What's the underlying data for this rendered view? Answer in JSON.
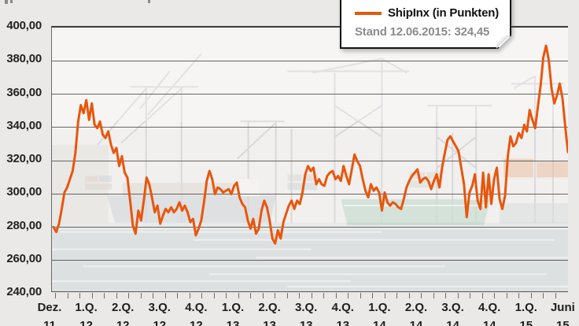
{
  "page": {
    "background": "#eae9e7"
  },
  "legend": {
    "series_label": "ShipInx (in Punkten)",
    "stand_label": "Stand 12.06.2015: 324,45",
    "line_color": "#e8560d"
  },
  "chart_data": {
    "type": "line",
    "title": "ShipInx (in Punkten)",
    "subtitle": "Stand 12.06.2015: 324,45",
    "ylim": [
      240,
      400
    ],
    "grid": true,
    "legend_position": "top-right",
    "y_ticks": [
      "400,00",
      "380,00",
      "360,00",
      "340,00",
      "320,00",
      "300,00",
      "280,00",
      "260,00",
      "240,00"
    ],
    "y_tick_values": [
      400,
      380,
      360,
      340,
      320,
      300,
      280,
      260,
      240
    ],
    "x_labels": [
      "Dez.",
      "1.Q.",
      "2.Q.",
      "3.Q.",
      "4.Q.",
      "1.Q.",
      "2.Q.",
      "3.Q.",
      "4.Q.",
      "1.Q.",
      "2.Q.",
      "3.Q.",
      "4.Q.",
      "1.Q.",
      "Juni"
    ],
    "x_year_labels": [
      "11",
      "12",
      "12",
      "12",
      "12",
      "13",
      "13",
      "13",
      "13",
      "14",
      "14",
      "14",
      "14",
      "15",
      "15"
    ],
    "x_range_note": "Dez. 2011 bis Juni 2015, Monatsticks",
    "last_value": 324.45,
    "series": [
      {
        "name": "ShipInx",
        "color": "#e8560d",
        "values": [
          279,
          276,
          281,
          290,
          300,
          303,
          308,
          313,
          324,
          343,
          353,
          348,
          356,
          344,
          354,
          341,
          339,
          343,
          335,
          333,
          337,
          329,
          324,
          327,
          316,
          322,
          312,
          309,
          295,
          280,
          275,
          289,
          283,
          295,
          309,
          305,
          297,
          288,
          292,
          281,
          286,
          290,
          288,
          291,
          288,
          290,
          294,
          289,
          292,
          288,
          282,
          284,
          274,
          278,
          283,
          294,
          307,
          313,
          308,
          299,
          303,
          302,
          300,
          301,
          302,
          299,
          304,
          306,
          297,
          293,
          291,
          283,
          278,
          284,
          275,
          278,
          289,
          295,
          291,
          283,
          272,
          269,
          277,
          272,
          282,
          287,
          292,
          295,
          290,
          295,
          293,
          300,
          311,
          316,
          313,
          315,
          305,
          308,
          305,
          304,
          310,
          312,
          313,
          308,
          310,
          307,
          316,
          310,
          305,
          314,
          323,
          319,
          316,
          308,
          301,
          297,
          305,
          301,
          303,
          300,
          289,
          300,
          294,
          292,
          294,
          293,
          291,
          290,
          296,
          303,
          307,
          310,
          312,
          314,
          306,
          308,
          309,
          307,
          302,
          307,
          311,
          303,
          315,
          324,
          332,
          334,
          331,
          328,
          325,
          315,
          305,
          285,
          300,
          304,
          311,
          295,
          290,
          312,
          291,
          311,
          293,
          308,
          315,
          296,
          290,
          298,
          322,
          334,
          328,
          330,
          336,
          333,
          341,
          337,
          350,
          344,
          339,
          352,
          365,
          382,
          389,
          380,
          363,
          354,
          359,
          366,
          357,
          340,
          324.45
        ]
      }
    ]
  }
}
